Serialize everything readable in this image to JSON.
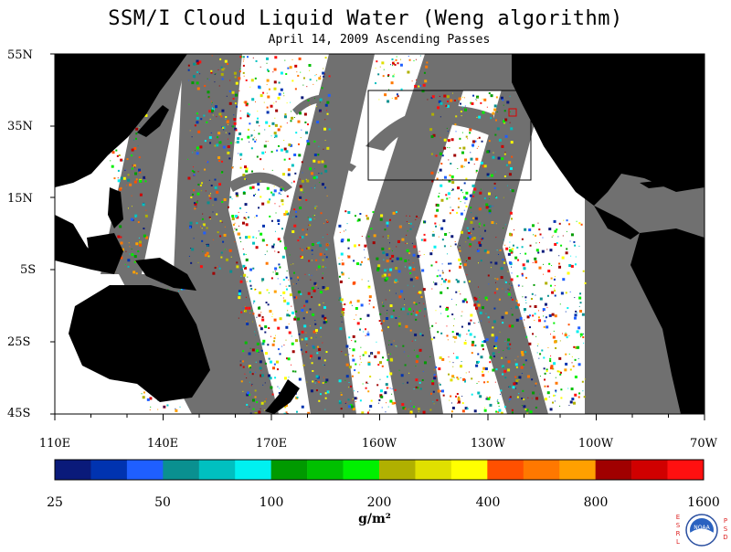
{
  "title": "SSM/I Cloud Liquid Water (Weng algorithm)",
  "subtitle": "April 14, 2009  Ascending Passes",
  "latitude_labels": [
    "55N",
    "35N",
    "15N",
    "5S",
    "25S",
    "45S"
  ],
  "longitude_labels": [
    "110E",
    "140E",
    "170E",
    "160W",
    "130W",
    "100W",
    "70W"
  ],
  "colorbar": {
    "labels": [
      "25",
      "50",
      "100",
      "200",
      "400",
      "800",
      "1600"
    ],
    "units": "g/m²",
    "colors": [
      "#0a1a7a",
      "#0033b0",
      "#1f5fff",
      "#0a9090",
      "#00c0c0",
      "#00f0f0",
      "#009a00",
      "#00c000",
      "#00f000",
      "#b0b000",
      "#e0e000",
      "#ffff00",
      "#ff5000",
      "#ff7800",
      "#ffa000",
      "#a00000",
      "#d00000",
      "#ff1010"
    ]
  },
  "colors": {
    "land": "#000000",
    "no_data": "#707070",
    "clear": "#ffffff"
  },
  "logo": {
    "text": "NOAA",
    "left_letters": [
      "E",
      "S",
      "R",
      "L"
    ],
    "right_letters": [
      "P",
      "S",
      "D"
    ]
  }
}
